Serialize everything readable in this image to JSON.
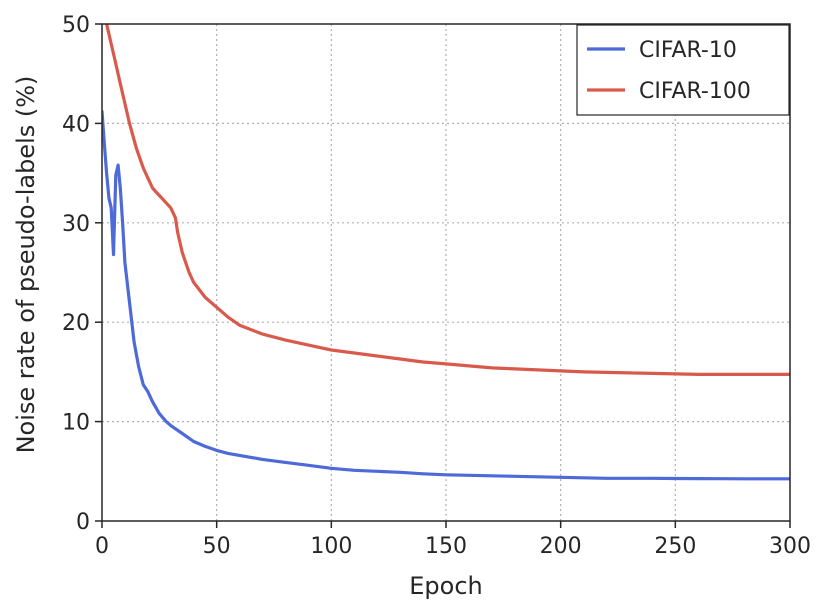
{
  "chart_data": {
    "type": "line",
    "xlabel": "Epoch",
    "ylabel": "Noise rate of pseudo-labels (%)",
    "xlim": [
      0,
      300
    ],
    "ylim": [
      0,
      50
    ],
    "x_ticks": [
      0,
      50,
      100,
      150,
      200,
      250,
      300
    ],
    "y_ticks": [
      0,
      10,
      20,
      30,
      40,
      50
    ],
    "grid": true,
    "legend_position": "top-right",
    "series": [
      {
        "name": "CIFAR-10",
        "color": "#4e6ad8",
        "x": [
          0,
          1,
          2,
          3,
          4,
          5,
          6,
          7,
          8,
          9,
          10,
          12,
          14,
          16,
          18,
          20,
          22,
          25,
          28,
          30,
          35,
          40,
          45,
          50,
          55,
          60,
          70,
          80,
          90,
          100,
          110,
          120,
          130,
          140,
          150,
          160,
          170,
          180,
          190,
          200,
          210,
          220,
          230,
          240,
          250,
          260,
          270,
          280,
          290,
          300
        ],
        "y": [
          41.2,
          38.0,
          35.0,
          32.5,
          31.5,
          26.8,
          34.8,
          35.8,
          33.5,
          30.0,
          26.0,
          22.0,
          18.0,
          15.5,
          13.7,
          13.0,
          12.0,
          10.8,
          10.0,
          9.6,
          8.8,
          8.0,
          7.5,
          7.1,
          6.8,
          6.6,
          6.2,
          5.9,
          5.6,
          5.3,
          5.1,
          5.0,
          4.9,
          4.75,
          4.65,
          4.6,
          4.55,
          4.5,
          4.45,
          4.4,
          4.35,
          4.3,
          4.3,
          4.3,
          4.28,
          4.27,
          4.26,
          4.25,
          4.25,
          4.25
        ]
      },
      {
        "name": "CIFAR-100",
        "color": "#d95a4c",
        "x": [
          2,
          3,
          4,
          5,
          6,
          8,
          10,
          12,
          15,
          18,
          20,
          22,
          24,
          26,
          28,
          30,
          32,
          33,
          35,
          38,
          40,
          45,
          50,
          55,
          60,
          70,
          80,
          90,
          100,
          110,
          120,
          130,
          140,
          150,
          160,
          170,
          180,
          190,
          200,
          210,
          220,
          230,
          240,
          250,
          260,
          270,
          280,
          290,
          300
        ],
        "y": [
          50.0,
          49.0,
          48.0,
          47.0,
          46.0,
          44.0,
          42.0,
          40.0,
          37.5,
          35.5,
          34.5,
          33.5,
          33.0,
          32.5,
          32.0,
          31.5,
          30.5,
          29.0,
          27.0,
          25.0,
          24.0,
          22.5,
          21.5,
          20.5,
          19.7,
          18.8,
          18.2,
          17.7,
          17.2,
          16.9,
          16.6,
          16.3,
          16.0,
          15.8,
          15.6,
          15.4,
          15.3,
          15.2,
          15.1,
          15.0,
          14.95,
          14.9,
          14.85,
          14.8,
          14.75,
          14.75,
          14.75,
          14.75,
          14.75
        ]
      }
    ]
  }
}
